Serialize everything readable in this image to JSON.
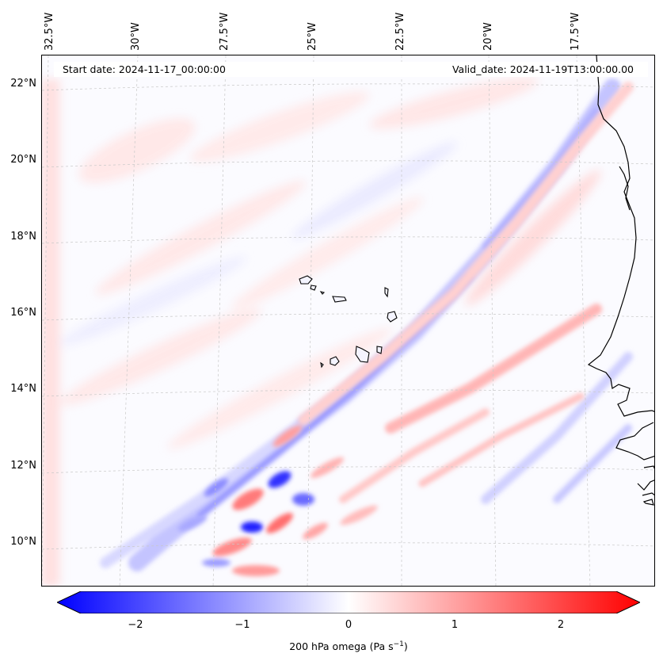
{
  "map": {
    "start_date": "Start date: 2024-11-17_00:00:00",
    "valid_date": "Valid_date: 2024-11-19T13:00:00.00",
    "lon_labels": [
      "32.5°W",
      "30°W",
      "27.5°W",
      "25°W",
      "22.5°W",
      "20°W",
      "17.5°W"
    ],
    "lat_labels": [
      "22°N",
      "20°N",
      "18°N",
      "16°N",
      "14°N",
      "12°N",
      "10°N"
    ],
    "colors": {
      "negative": "#0000ff",
      "zero": "#ffffff",
      "positive": "#ff0000",
      "coastline": "#000000"
    }
  },
  "colorbar": {
    "ticks": [
      "−2",
      "−1",
      "0",
      "1",
      "2"
    ],
    "label": "200 hPa omega (Pa s",
    "label_exp": "−1",
    "label_close": ")",
    "range": [
      -2.6,
      2.6
    ]
  }
}
